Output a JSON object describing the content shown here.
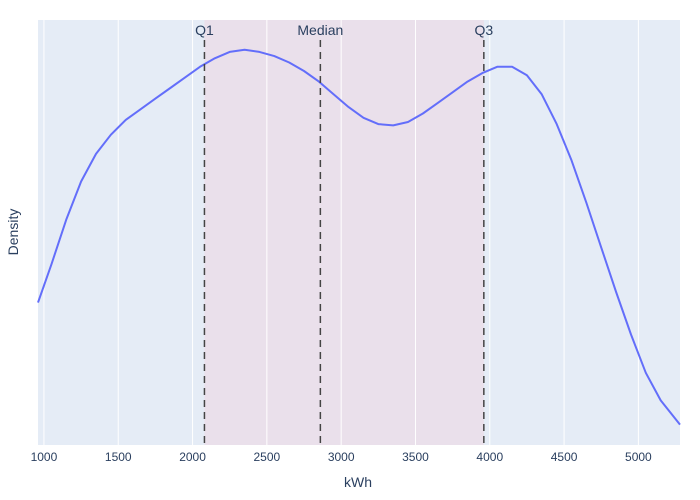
{
  "chart_data": {
    "type": "line",
    "title": "",
    "xlabel": "kWh",
    "ylabel": "Density",
    "xlim": [
      960,
      5280
    ],
    "ylim": [
      0,
      1.0
    ],
    "x_ticks": [
      1000,
      1500,
      2000,
      2500,
      3000,
      3500,
      4000,
      4500,
      5000
    ],
    "grid": true,
    "y_tick_labels": false,
    "colors": {
      "line": "#636efa",
      "plot_bg": "#e5ecf6",
      "grid": "#ffffff",
      "band": "#f5c5cf",
      "vline": "#444444",
      "text": "#2a3f5f"
    },
    "shaded_band": {
      "from": 2080,
      "to": 3960
    },
    "reference_lines": [
      {
        "label": "Q1",
        "x": 2080
      },
      {
        "label": "Median",
        "x": 2860
      },
      {
        "label": "Q3",
        "x": 3960
      }
    ],
    "series": [
      {
        "x": [
          960,
          1050,
          1150,
          1250,
          1350,
          1450,
          1550,
          1650,
          1750,
          1850,
          1950,
          2050,
          2150,
          2250,
          2350,
          2450,
          2550,
          2650,
          2750,
          2850,
          2950,
          3050,
          3150,
          3250,
          3350,
          3450,
          3550,
          3650,
          3750,
          3850,
          3950,
          4050,
          4150,
          4250,
          4350,
          4450,
          4550,
          4650,
          4750,
          4850,
          4950,
          5050,
          5150,
          5280
        ],
        "y": [
          0.335,
          0.425,
          0.53,
          0.62,
          0.685,
          0.73,
          0.765,
          0.79,
          0.815,
          0.84,
          0.865,
          0.89,
          0.91,
          0.925,
          0.93,
          0.925,
          0.915,
          0.9,
          0.88,
          0.855,
          0.825,
          0.795,
          0.77,
          0.755,
          0.752,
          0.76,
          0.78,
          0.805,
          0.83,
          0.855,
          0.875,
          0.89,
          0.89,
          0.87,
          0.825,
          0.755,
          0.67,
          0.57,
          0.465,
          0.36,
          0.26,
          0.17,
          0.105,
          0.048
        ]
      }
    ]
  }
}
